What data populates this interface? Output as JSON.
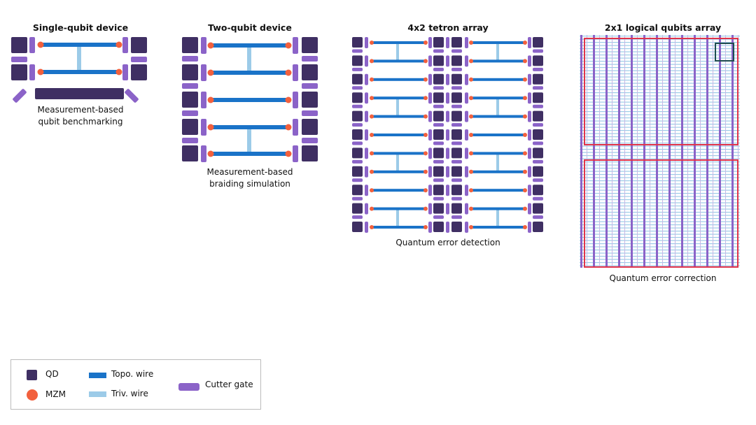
{
  "panels": [
    {
      "title": "Single-qubit device",
      "caption_lines": [
        "Measurement-based",
        "qubit benchmarking"
      ]
    },
    {
      "title": "Two-qubit device",
      "caption_lines": [
        "Measurement-based",
        "braiding simulation"
      ]
    },
    {
      "title": "4x2 tetron array",
      "caption_lines": [
        "Quantum error detection"
      ]
    },
    {
      "title": "2x1 logical qubits array",
      "caption_lines": [
        "Quantum error correction"
      ]
    }
  ],
  "legend": {
    "qd": "QD",
    "mzm": "MZM",
    "topo": "Topo. wire",
    "triv": "Triv. wire",
    "cutter": "Cutter gate"
  },
  "colors": {
    "qd": "#3f2f63",
    "mzm": "#f2603d",
    "topo": "#1a73c8",
    "triv": "#9ccbe8",
    "cutter": "#8b63c8",
    "logical_box": "#e0344a",
    "highlight_box": "#1f4d4f"
  }
}
